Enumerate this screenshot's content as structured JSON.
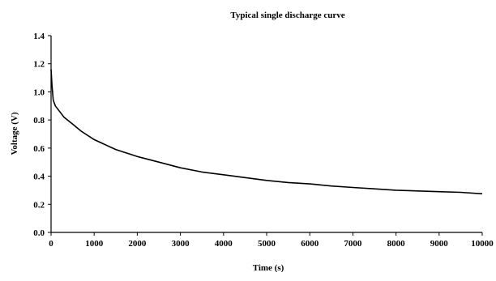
{
  "chart_data": {
    "type": "line",
    "title": "Typical single discharge curve",
    "xlabel": "Time (s)",
    "ylabel": "Voltage (V)",
    "xlim": [
      0,
      10000
    ],
    "ylim": [
      0.0,
      1.4
    ],
    "x_ticks": [
      0,
      1000,
      2000,
      3000,
      4000,
      5000,
      6000,
      7000,
      8000,
      9000,
      10000
    ],
    "y_ticks": [
      0.0,
      0.2,
      0.4,
      0.6,
      0.8,
      1.0,
      1.2,
      1.4
    ],
    "y_tick_labels": [
      "0.0",
      "0.2",
      "0.4",
      "0.6",
      "0.8",
      "1.0",
      "1.2",
      "1.4"
    ],
    "grid": false,
    "line_color": "#000000",
    "series": [
      {
        "x": [
          0,
          20,
          50,
          100,
          200,
          300,
          500,
          700,
          1000,
          1500,
          2000,
          2500,
          3000,
          3500,
          4000,
          4500,
          5000,
          5500,
          6000,
          6500,
          7000,
          7500,
          8000,
          8500,
          9000,
          9500,
          10000
        ],
        "values": [
          1.16,
          1.05,
          0.94,
          0.9,
          0.86,
          0.82,
          0.77,
          0.72,
          0.66,
          0.59,
          0.54,
          0.5,
          0.46,
          0.43,
          0.41,
          0.39,
          0.37,
          0.355,
          0.345,
          0.33,
          0.32,
          0.31,
          0.3,
          0.295,
          0.29,
          0.285,
          0.275
        ]
      }
    ]
  }
}
